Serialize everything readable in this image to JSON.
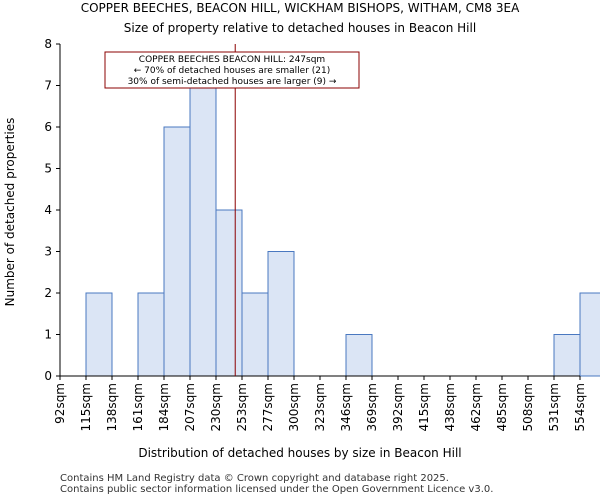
{
  "chart_data": {
    "type": "bar",
    "title_line1": "COPPER BEECHES, BEACON HILL, WICKHAM BISHOPS, WITHAM, CM8 3EA",
    "title_line2": "Size of property relative to detached houses in Beacon Hill",
    "xlabel": "Distribution of detached houses by size in Beacon Hill",
    "ylabel": "Number of detached properties",
    "categories": [
      "92sqm",
      "115sqm",
      "138sqm",
      "161sqm",
      "184sqm",
      "207sqm",
      "230sqm",
      "253sqm",
      "277sqm",
      "300sqm",
      "323sqm",
      "346sqm",
      "369sqm",
      "392sqm",
      "415sqm",
      "438sqm",
      "462sqm",
      "485sqm",
      "508sqm",
      "531sqm",
      "554sqm"
    ],
    "values": [
      0,
      2,
      0,
      2,
      6,
      7,
      4,
      2,
      3,
      0,
      0,
      1,
      0,
      0,
      0,
      0,
      0,
      0,
      0,
      1,
      2
    ],
    "ylim": [
      0,
      8
    ],
    "yticks": [
      0,
      1,
      2,
      3,
      4,
      5,
      6,
      7,
      8
    ],
    "marker": {
      "value": 247,
      "unit": "sqm",
      "line1": "COPPER BEECHES BEACON HILL: 247sqm",
      "line2": "← 70% of detached houses are smaller (21)",
      "line3": "30% of semi-detached houses are larger (9) →"
    },
    "colors": {
      "bar_fill": "#dbe5f5",
      "bar_stroke": "#4a78c0",
      "marker": "#8b0000",
      "axis": "#000000"
    }
  },
  "footer": {
    "line1": "Contains HM Land Registry data © Crown copyright and database right 2025.",
    "line2": "Contains public sector information licensed under the Open Government Licence v3.0."
  }
}
